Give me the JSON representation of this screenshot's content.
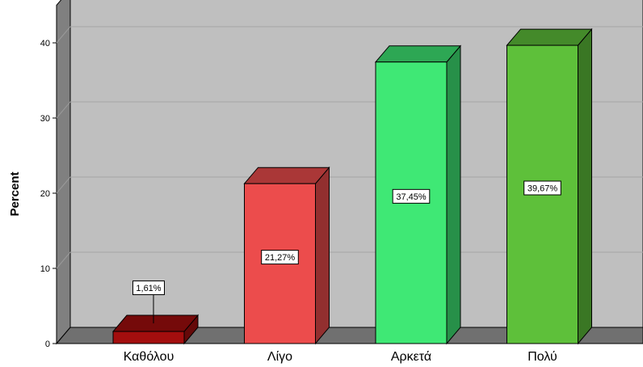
{
  "chart_data": {
    "type": "bar",
    "style": "3d",
    "ylabel": "Percent",
    "xlabel": "",
    "ylim": [
      0,
      45
    ],
    "yticks": [
      0,
      10,
      20,
      30,
      40
    ],
    "grid": true,
    "categories": [
      "Καθόλου",
      "Λίγο",
      "Αρκετά",
      "Πολύ"
    ],
    "values": [
      1.61,
      21.27,
      37.45,
      39.67
    ],
    "data_labels": [
      "1,61%",
      "21,27%",
      "37,45%",
      "39,67%"
    ],
    "bar_colors": [
      "#a30e0e",
      "#ec4c4c",
      "#3fe875",
      "#5ec03a"
    ],
    "background_color": "#bfbfbf",
    "floor_color": "#707070"
  }
}
